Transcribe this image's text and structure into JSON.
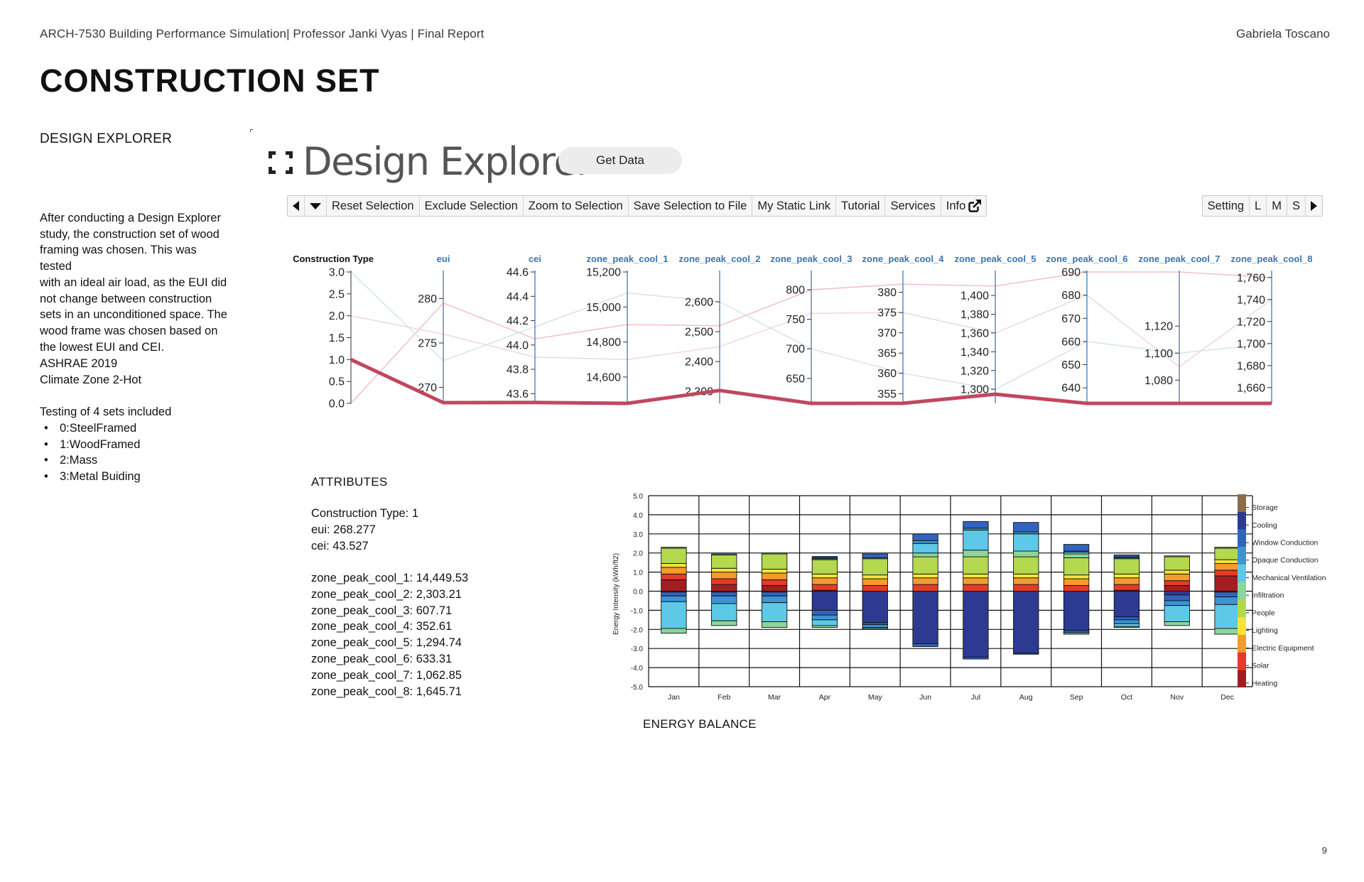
{
  "header": {
    "left": "ARCH-7530 Building Performance Simulation| Professor Janki Vyas | Final Report",
    "right": "Gabriela Toscano"
  },
  "page_title": "CONSTRUCTION SET",
  "sidebar": {
    "section_title": "DESIGN EXPLORER",
    "paragraph_lines": [
      "After conducting a Design Explorer",
      "study, the construction set of wood",
      "framing was chosen. This was tested",
      "with an ideal air load, as the EUI did",
      "not change between construction",
      "sets in an unconditioned space. The",
      "wood frame was chosen based on",
      "the lowest EUI and CEI."
    ],
    "ashrae_lines": [
      "ASHRAE 2019",
      "Climate Zone 2-Hot"
    ],
    "testing_title": "Testing of 4 sets included",
    "testing_items": [
      "0:SteelFramed",
      "1:WoodFramed",
      "2:Mass",
      "3:Metal Buiding"
    ]
  },
  "design_explorer": {
    "logo_text": "Design Explorer",
    "get_data_label": "Get Data",
    "toolbar": {
      "prev_icon": "left-arrow-icon",
      "dropdown_icon": "caret-down-icon",
      "items": [
        "Reset Selection",
        "Exclude Selection",
        "Zoom to Selection",
        "Save Selection to File",
        "My Static Link",
        "Tutorial",
        "Services",
        "Info"
      ],
      "external_icon": "external-link-icon"
    },
    "toolbar_right": {
      "items": [
        "Setting",
        "L",
        "M",
        "S"
      ],
      "next_icon": "right-arrow-icon"
    }
  },
  "attributes": {
    "title": "ATTRIBUTES",
    "lines_a": [
      "Construction Type: 1",
      "eui: 268.277",
      "cei: 43.527"
    ],
    "lines_b": [
      "zone_peak_cool_1: 14,449.53",
      "zone_peak_cool_2: 2,303.21",
      "zone_peak_cool_3: 607.71",
      "zone_peak_cool_4: 352.61",
      "zone_peak_cool_5: 1,294.74",
      "zone_peak_cool_6: 633.31",
      "zone_peak_cool_7: 1,062.85",
      "zone_peak_cool_8: 1,645.71"
    ]
  },
  "energy_caption": "ENERGY BALANCE",
  "page_number": "9",
  "chart_data": [
    {
      "type": "parallel_coordinates",
      "axes": [
        {
          "name": "Construction Type",
          "min": 0,
          "max": 3,
          "ticks": [
            0.0,
            0.5,
            1.0,
            1.5,
            2.0,
            2.5,
            3.0
          ],
          "tick_labels": [
            "0.0",
            "0.5",
            "1.0",
            "1.5",
            "2.0",
            "2.5",
            "3.0"
          ]
        },
        {
          "name": "eui",
          "min": 268.2,
          "max": 283,
          "ticks": [
            270,
            275,
            280
          ],
          "tick_labels": [
            "270",
            "275",
            "280"
          ]
        },
        {
          "name": "cei",
          "min": 43.52,
          "max": 44.6,
          "ticks": [
            43.6,
            43.8,
            44.0,
            44.2,
            44.4,
            44.6
          ],
          "tick_labels": [
            "43.6",
            "43.8",
            "44.0",
            "44.2",
            "44.4",
            "44.6"
          ]
        },
        {
          "name": "zone_peak_cool_1",
          "min": 14449.5,
          "max": 15200,
          "ticks": [
            14600,
            14800,
            15000,
            15200
          ],
          "tick_labels": [
            "14,600",
            "14,800",
            "15,000",
            "15,200"
          ]
        },
        {
          "name": "zone_peak_cool_2",
          "min": 2260,
          "max": 2700,
          "ticks": [
            2300,
            2400,
            2500,
            2600
          ],
          "tick_labels": [
            "2,300",
            "2,400",
            "2,500",
            "2,600"
          ]
        },
        {
          "name": "zone_peak_cool_3",
          "min": 607.7,
          "max": 830,
          "ticks": [
            650,
            700,
            750,
            800
          ],
          "tick_labels": [
            "650",
            "700",
            "750",
            "800"
          ]
        },
        {
          "name": "zone_peak_cool_4",
          "min": 352.6,
          "max": 385,
          "ticks": [
            355,
            360,
            365,
            370,
            375,
            380
          ],
          "tick_labels": [
            "355",
            "360",
            "365",
            "370",
            "375",
            "380"
          ]
        },
        {
          "name": "zone_peak_cool_5",
          "min": 1285,
          "max": 1425,
          "ticks": [
            1300,
            1320,
            1340,
            1360,
            1380,
            1400
          ],
          "tick_labels": [
            "1,300",
            "1,320",
            "1,340",
            "1,360",
            "1,380",
            "1,400"
          ]
        },
        {
          "name": "zone_peak_cool_6",
          "min": 633.3,
          "max": 690,
          "ticks": [
            640,
            650,
            660,
            670,
            680,
            690
          ],
          "tick_labels": [
            "640",
            "650",
            "660",
            "670",
            "680",
            "690"
          ]
        },
        {
          "name": "zone_peak_cool_7",
          "min": 1062.85,
          "max": 1160,
          "ticks": [
            1080,
            1100,
            1120
          ],
          "tick_labels": [
            "1,080",
            "1,100",
            "1,120"
          ]
        },
        {
          "name": "zone_peak_cool_8",
          "min": 1645.7,
          "max": 1765,
          "ticks": [
            1660,
            1680,
            1700,
            1720,
            1740,
            1760
          ],
          "tick_labels": [
            "1,660",
            "1,680",
            "1,700",
            "1,720",
            "1,740",
            "1,760"
          ]
        }
      ],
      "highlighted_line": {
        "color": "#c1475d",
        "values": [
          1,
          268.277,
          43.527,
          14449.53,
          2303.21,
          607.71,
          352.61,
          1294.74,
          633.31,
          1062.85,
          1645.71
        ]
      },
      "faded_lines": [
        {
          "color": "#f1c0c6",
          "values": [
            0,
            279.5,
            44.05,
            14900,
            2520,
            800,
            382,
            1410,
            690,
            1160,
            1760
          ]
        },
        {
          "color": "#d3e4f1",
          "values": [
            3,
            273,
            44.15,
            15080,
            2600,
            700,
            360,
            1300,
            660,
            1100,
            1700
          ]
        },
        {
          "color": "#efd7dc",
          "values": [
            2,
            276,
            43.9,
            14700,
            2450,
            760,
            375,
            1360,
            680,
            1090,
            1740
          ]
        }
      ]
    },
    {
      "type": "bar",
      "stacked": true,
      "categories": [
        "Jan",
        "Feb",
        "Mar",
        "Apr",
        "May",
        "Jun",
        "Jul",
        "Aug",
        "Sep",
        "Oct",
        "Nov",
        "Dec"
      ],
      "ylabel": "Energy Intensity (kWh/ft2)",
      "ylim": [
        -5.0,
        5.0
      ],
      "y_ticks": [
        "5.0",
        "4.0",
        "3.0",
        "2.0",
        "1.0",
        "0.0",
        "-1.0",
        "-2.0",
        "-3.0",
        "-4.0",
        "-5.0"
      ],
      "grid": true,
      "legend_position": "right",
      "legend": [
        {
          "name": "Storage",
          "color": "#8a6d4b"
        },
        {
          "name": "Cooling",
          "color": "#2d3a91"
        },
        {
          "name": "Window Conduction",
          "color": "#3164bd"
        },
        {
          "name": "Opaque Conduction",
          "color": "#3d93d3"
        },
        {
          "name": "Mechanical Ventilation",
          "color": "#5ec9e6"
        },
        {
          "name": "Infiltration",
          "color": "#8ed49b"
        },
        {
          "name": "People",
          "color": "#b4d84e"
        },
        {
          "name": "Lighting",
          "color": "#f4e43a"
        },
        {
          "name": "Electric Equipment",
          "color": "#f39b2b"
        },
        {
          "name": "Solar",
          "color": "#e53b2b"
        },
        {
          "name": "Heating",
          "color": "#a31d22"
        }
      ],
      "series": [
        {
          "name": "Heating",
          "values": [
            0.6,
            0.35,
            0.3,
            0.05,
            0.0,
            0.0,
            0.0,
            0.0,
            0.0,
            0.05,
            0.3,
            0.8
          ]
        },
        {
          "name": "Solar",
          "values": [
            0.3,
            0.3,
            0.3,
            0.3,
            0.3,
            0.35,
            0.35,
            0.35,
            0.3,
            0.3,
            0.25,
            0.3
          ]
        },
        {
          "name": "Electric Equipment",
          "values": [
            0.35,
            0.35,
            0.35,
            0.35,
            0.35,
            0.35,
            0.35,
            0.35,
            0.35,
            0.35,
            0.35,
            0.35
          ]
        },
        {
          "name": "Lighting",
          "values": [
            0.2,
            0.2,
            0.2,
            0.2,
            0.2,
            0.2,
            0.2,
            0.2,
            0.2,
            0.2,
            0.2,
            0.2
          ]
        },
        {
          "name": "People",
          "values": [
            0.8,
            0.7,
            0.8,
            0.75,
            0.85,
            0.9,
            0.9,
            0.9,
            0.9,
            0.8,
            0.7,
            0.6
          ]
        },
        {
          "name": "Infiltration",
          "values": [
            0.05,
            0.05,
            0.05,
            0.05,
            0.05,
            0.2,
            0.35,
            0.3,
            0.2,
            0.05,
            0.05,
            0.05
          ]
        },
        {
          "name": "Mechanical Ventilation",
          "values": [
            0.0,
            0.0,
            0.0,
            0.0,
            0.0,
            0.5,
            1.05,
            0.9,
            0.1,
            0.0,
            0.0,
            0.0
          ]
        },
        {
          "name": "Opaque Conduction",
          "values": [
            0.0,
            0.0,
            0.0,
            0.05,
            0.0,
            0.15,
            0.1,
            0.1,
            0.05,
            0.05,
            0.0,
            0.0
          ]
        },
        {
          "name": "Window Conduction",
          "values": [
            0.0,
            0.0,
            0.0,
            0.07,
            0.2,
            0.35,
            0.35,
            0.5,
            0.35,
            0.1,
            0.0,
            0.0
          ]
        },
        {
          "name": "Cooling",
          "values": [
            -0.05,
            -0.05,
            -0.05,
            -1.0,
            -1.65,
            -2.75,
            -3.45,
            -3.25,
            -2.05,
            -1.35,
            -0.2,
            -0.05
          ]
        },
        {
          "name": "Window Conduction",
          "values": [
            -0.2,
            -0.2,
            -0.2,
            -0.25,
            -0.1,
            -0.15,
            -0.1,
            -0.05,
            -0.1,
            -0.15,
            -0.3,
            -0.25
          ]
        },
        {
          "name": "Opaque Conduction",
          "values": [
            -0.3,
            -0.4,
            -0.35,
            -0.25,
            -0.15,
            0.0,
            0.0,
            0.0,
            -0.1,
            -0.2,
            -0.25,
            -0.4
          ]
        },
        {
          "name": "Mechanical Ventilation",
          "values": [
            -1.4,
            -0.9,
            -1.0,
            -0.3,
            -0.05,
            0.0,
            0.0,
            0.0,
            0.0,
            -0.15,
            -0.85,
            -1.25
          ]
        },
        {
          "name": "Infiltration",
          "values": [
            -0.25,
            -0.25,
            -0.3,
            -0.1,
            -0.05,
            0.0,
            0.0,
            0.0,
            0.0,
            -0.05,
            -0.2,
            -0.3
          ]
        }
      ]
    }
  ]
}
